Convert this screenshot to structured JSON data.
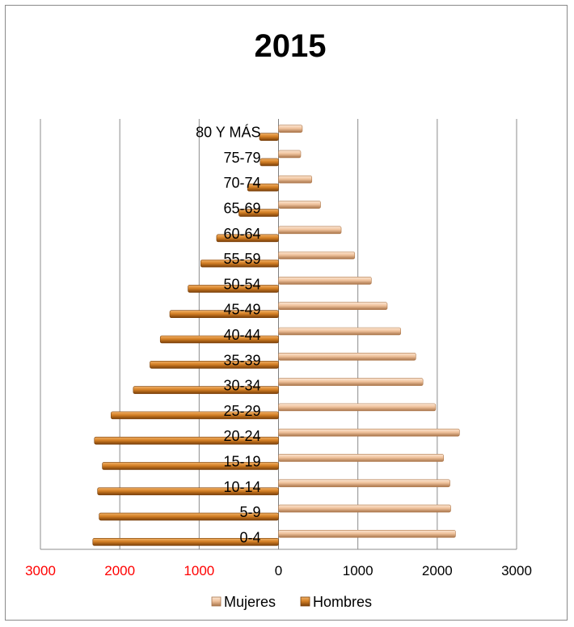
{
  "chart_data": {
    "type": "bar",
    "title": "2015",
    "categories": [
      "0-4",
      "5-9",
      "10-14",
      "15-19",
      "20-24",
      "25-29",
      "30-34",
      "35-39",
      "40-44",
      "45-49",
      "50-54",
      "55-59",
      "60-64",
      "65-69",
      "70-74",
      "75-79",
      "80 Y MÁS"
    ],
    "series": [
      {
        "name": "Mujeres",
        "color": "#f2c9a6",
        "values": [
          2230,
          2170,
          2160,
          2080,
          2280,
          1980,
          1820,
          1730,
          1540,
          1370,
          1170,
          960,
          790,
          530,
          420,
          280,
          300
        ]
      },
      {
        "name": "Hombres",
        "color": "#c8741c",
        "values": [
          2340,
          2260,
          2280,
          2220,
          2320,
          2110,
          1830,
          1620,
          1490,
          1370,
          1140,
          980,
          780,
          500,
          390,
          230,
          240
        ]
      }
    ],
    "xlim": [
      -3000,
      3000
    ],
    "x_ticks": [
      -3000,
      -2000,
      -1000,
      0,
      1000,
      2000,
      3000
    ],
    "x_tick_labels": [
      "3000",
      "2000",
      "1000",
      "0",
      "1000",
      "2000",
      "3000"
    ],
    "left_tick_color": "#ff0000",
    "right_tick_color": "#000000",
    "grid": true,
    "legend": {
      "placement": "bottom",
      "items": [
        "Mujeres",
        "Hombres"
      ]
    }
  }
}
